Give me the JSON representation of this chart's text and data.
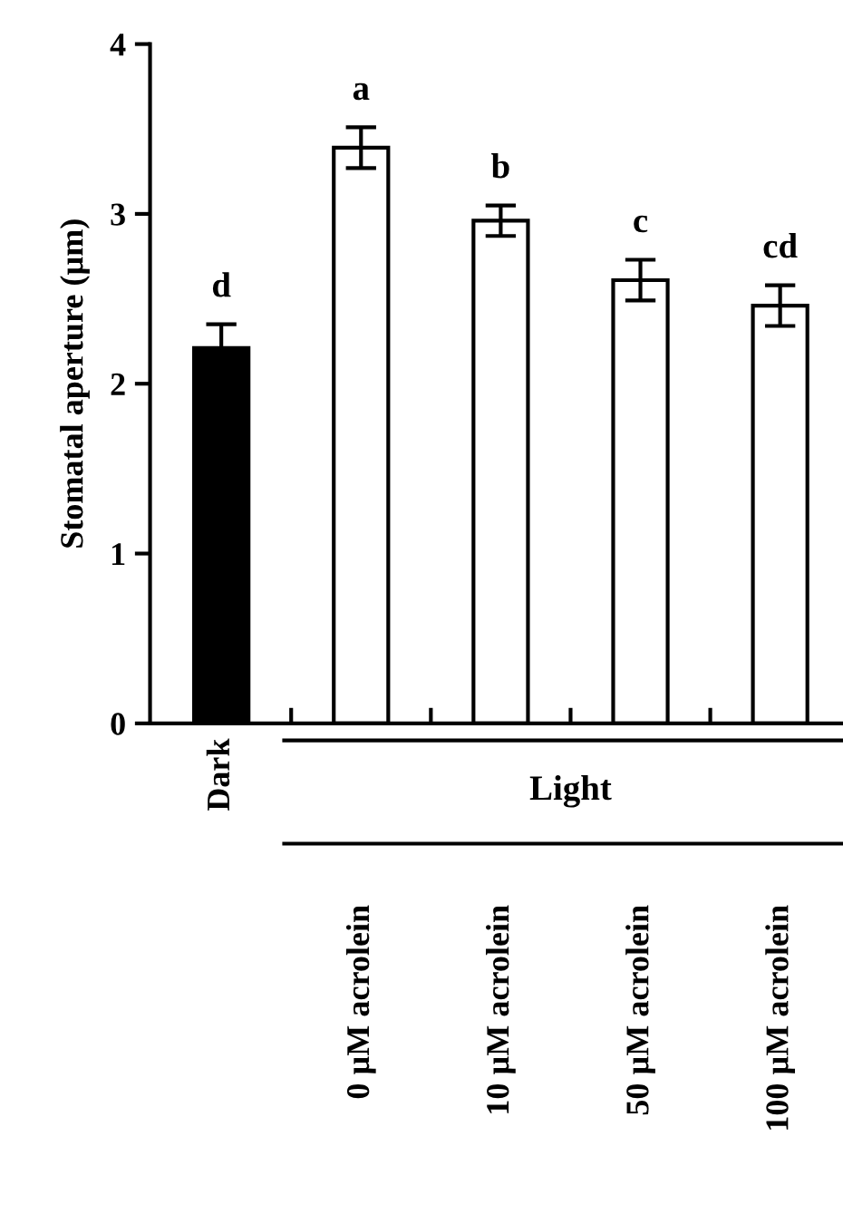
{
  "chart_data": {
    "type": "bar",
    "ylabel": "Stomatal aperture (µm)",
    "categories": [
      "Dark",
      "0 µM acrolein",
      "10 µM acrolein",
      "50 µM acrolein",
      "100 µM acrolein"
    ],
    "values": [
      2.21,
      3.39,
      2.96,
      2.61,
      2.46
    ],
    "errors": [
      0.14,
      0.12,
      0.09,
      0.12,
      0.12
    ],
    "colors": [
      "#000000",
      "#ffffff",
      "#ffffff",
      "#ffffff",
      "#ffffff"
    ],
    "ylim": [
      0,
      4
    ],
    "yticks": [
      0,
      1,
      2,
      3,
      4
    ],
    "grid": false,
    "legend": false,
    "annotations": [
      {
        "text": "d",
        "x": "Dark",
        "y": 2.35
      },
      {
        "text": "a",
        "x": "0 µM acrolein",
        "y": 3.51
      },
      {
        "text": "b",
        "x": "10 µM acrolein",
        "y": 3.05
      },
      {
        "text": "c",
        "x": "50 µM acrolein",
        "y": 2.73
      },
      {
        "text": "cd",
        "x": "100 µM acrolein",
        "y": 2.58
      },
      "Light"
    ]
  }
}
